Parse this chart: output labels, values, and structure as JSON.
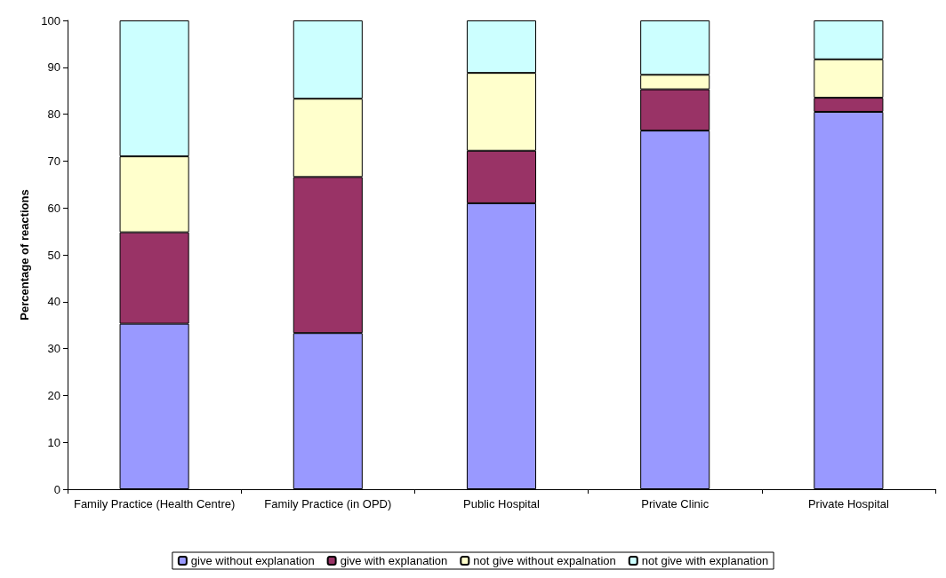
{
  "chart_data": {
    "type": "bar",
    "stacked": true,
    "ylabel": "Percentage of reactions",
    "categories": [
      "Family Practice (Health Centre)",
      "Family Practice (in OPD)",
      "Public Hospital",
      "Private Clinic",
      "Private Hospital"
    ],
    "series": [
      {
        "name": "give without explanation",
        "color": "#9999ff",
        "values": [
          35.3,
          33.3,
          61.0,
          76.5,
          80.5
        ]
      },
      {
        "name": "give with explanation",
        "color": "#993366",
        "values": [
          19.5,
          33.3,
          11.2,
          8.8,
          3.0
        ]
      },
      {
        "name": "not give without expalnation",
        "color": "#ffffcc",
        "values": [
          16.2,
          16.7,
          16.6,
          3.1,
          8.2
        ]
      },
      {
        "name": "not give with explanation",
        "color": "#ccffff",
        "values": [
          29.0,
          16.7,
          11.2,
          11.6,
          8.3
        ]
      }
    ],
    "ylim": [
      0,
      100
    ],
    "yticks": [
      0,
      10,
      20,
      30,
      40,
      50,
      60,
      70,
      80,
      90,
      100
    ],
    "grid": false,
    "legend": "bottom"
  }
}
